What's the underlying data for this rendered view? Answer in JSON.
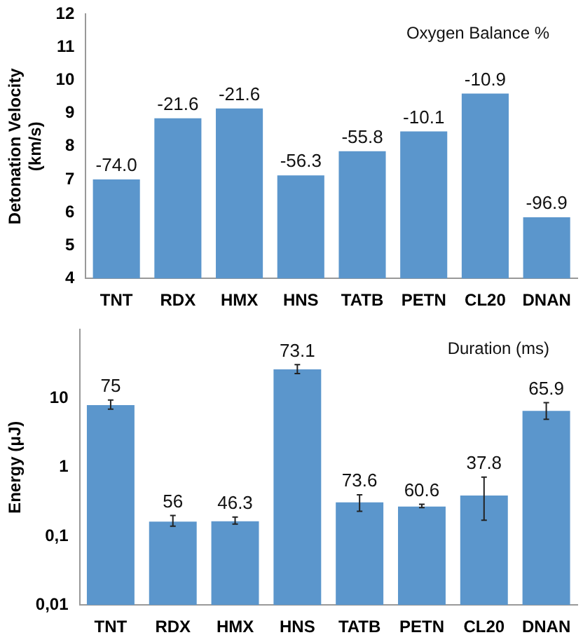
{
  "chart_data": [
    {
      "type": "bar",
      "ylabel": "Detonation Velocity (km/s)",
      "categories": [
        "TNT",
        "RDX",
        "HMX",
        "HNS",
        "TATB",
        "PETN",
        "CL20",
        "DNAN"
      ],
      "values": [
        7.0,
        8.85,
        9.15,
        7.12,
        7.85,
        8.45,
        9.6,
        5.85
      ],
      "color": "#5b96cc",
      "ylim": [
        4,
        12
      ],
      "yticks": [
        4,
        5,
        6,
        7,
        8,
        9,
        10,
        11,
        12
      ],
      "grid": false,
      "annotations": [
        "Oxygen Balance %",
        {
          "text": "-74.0",
          "x": "TNT",
          "y": 7.0
        },
        {
          "text": "-21.6",
          "x": "RDX",
          "y": 8.85
        },
        {
          "text": "-21.6",
          "x": "HMX",
          "y": 9.15
        },
        {
          "text": "-56.3",
          "x": "HNS",
          "y": 7.12
        },
        {
          "text": "-55.8",
          "x": "TATB",
          "y": 7.85
        },
        {
          "text": "-10.1",
          "x": "PETN",
          "y": 8.45
        },
        {
          "text": "-10.9",
          "x": "CL20",
          "y": 9.6
        },
        {
          "text": "-96.9",
          "x": "DNAN",
          "y": 5.85
        }
      ]
    },
    {
      "type": "bar",
      "ylabel": "Energy (μJ)",
      "categories": [
        "TNT",
        "RDX",
        "HMX",
        "HNS",
        "TATB",
        "PETN",
        "CL20",
        "DNAN"
      ],
      "values": [
        8.0,
        0.163,
        0.165,
        26.5,
        0.31,
        0.27,
        0.39,
        6.6
      ],
      "errors": [
        [
          7,
          9.5
        ],
        [
          0.14,
          0.2
        ],
        [
          0.15,
          0.19
        ],
        [
          23,
          31
        ],
        [
          0.23,
          0.4
        ],
        [
          0.26,
          0.29
        ],
        [
          0.17,
          0.72
        ],
        [
          5,
          8.7
        ]
      ],
      "color": "#5b96cc",
      "log": "y",
      "ylim": [
        0.01,
        100
      ],
      "yticks": [
        {
          "value": 0.01,
          "label": "0,01"
        },
        {
          "value": 0.1,
          "label": "0,1"
        },
        1,
        10
      ],
      "grid": false,
      "annotations": [
        "Duration (ms)",
        {
          "text": "75",
          "x": "TNT",
          "y": 9.5
        },
        {
          "text": "56",
          "x": "RDX",
          "y": 0.2
        },
        {
          "text": "46.3",
          "x": "HMX",
          "y": 0.19
        },
        {
          "text": "73.1",
          "x": "HNS",
          "y": 31
        },
        {
          "text": "73.6",
          "x": "TATB",
          "y": 0.4
        },
        {
          "text": "60.6",
          "x": "PETN",
          "y": 0.29
        },
        {
          "text": "37.8",
          "x": "CL20",
          "y": 0.72
        },
        {
          "text": "65.9",
          "x": "DNAN",
          "y": 8.7
        }
      ]
    }
  ]
}
